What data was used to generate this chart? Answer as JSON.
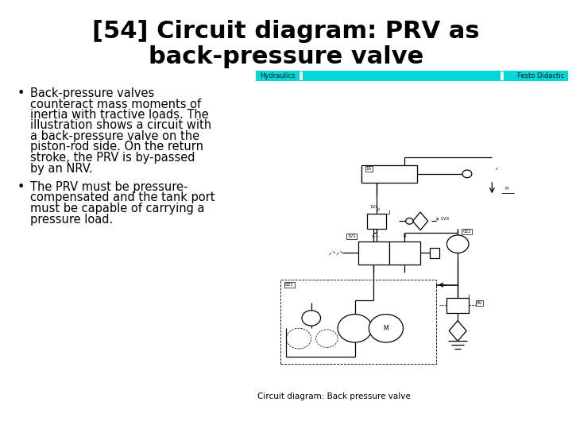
{
  "title_line1": "[54] Circuit diagram: PRV as",
  "title_line2": "back-pressure valve",
  "title_fontsize": 22,
  "bg_color": "#ffffff",
  "text_color": "#000000",
  "bullet1_lines": [
    "Back-pressure valves",
    "counteract mass moments of",
    "inertia with tractive loads. The",
    "illustration shows a circuit with",
    "a back-pressure valve on the",
    "piston-rod side. On the return",
    "stroke, the PRV is by-passed",
    "by an NRV."
  ],
  "bullet2_lines": [
    "The PRV must be pressure-",
    "compensated and the tank port",
    "must be capable of carrying a",
    "pressure load."
  ],
  "bullet_fontsize": 10.5,
  "header_cyan": "#00d8d8",
  "header_text_left": "Hydraulics",
  "header_text_right": "Festo Didactic",
  "caption": "Circuit diagram: Back pressure valve"
}
